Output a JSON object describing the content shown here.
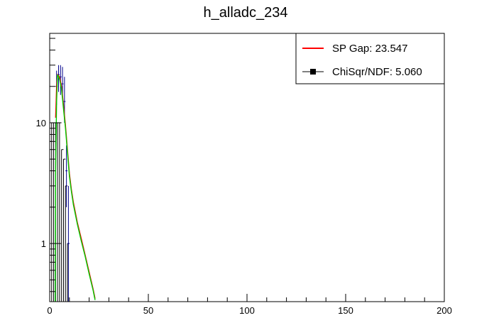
{
  "chart_data": {
    "type": "line",
    "title": "h_alladc_234",
    "xlabel": "",
    "ylabel": "",
    "xlim": [
      0,
      200
    ],
    "ylim": [
      0.33,
      55
    ],
    "log_y": true,
    "grid": false,
    "legend_position": "top-right",
    "x_ticks": [
      0,
      50,
      100,
      150,
      200
    ],
    "x_tick_labels": [
      "0",
      "50",
      "100",
      "150",
      "200"
    ],
    "y_ticks": [
      1,
      10
    ],
    "y_tick_labels": [
      "1",
      "10"
    ],
    "legend": [
      {
        "label": "SP Gap: 23.547",
        "color": "#ff0000",
        "marker": "line"
      },
      {
        "label": "ChiSqr/NDF: 5.060",
        "color": "#000000",
        "marker": "square"
      }
    ],
    "series": [
      {
        "kind": "histogram",
        "color": "#000000",
        "x": [
          0.5,
          1.5,
          2.5,
          3.5,
          4.5,
          5.5,
          6.5,
          7.5,
          8.5,
          9.5
        ],
        "values": [
          7,
          10,
          10,
          10,
          10,
          10,
          6,
          5,
          3,
          1
        ]
      },
      {
        "kind": "data_points",
        "color": "#00008b",
        "x": [
          3.5,
          4.5,
          5.5,
          6.5,
          7.5,
          8.5,
          9.5
        ],
        "values": [
          20,
          25,
          24,
          21,
          15,
          4,
          1
        ],
        "err_low": [
          14,
          18,
          17,
          16,
          10,
          2,
          0.33
        ],
        "err_high": [
          27,
          30,
          30,
          29,
          24,
          6.5,
          3
        ]
      },
      {
        "kind": "fit",
        "color": "#ff0000",
        "x": [
          3,
          3.5,
          4,
          5,
          6,
          7,
          8,
          9,
          10,
          11,
          12,
          14,
          16,
          18,
          20,
          22,
          23
        ],
        "values": [
          11,
          20,
          25,
          24,
          20,
          14,
          9.5,
          6,
          3.8,
          2.8,
          2.2,
          1.5,
          1.1,
          0.8,
          0.58,
          0.42,
          0.35
        ]
      },
      {
        "kind": "fit",
        "color": "#00cc00",
        "x": [
          2.8,
          3,
          3.5,
          4,
          5,
          6,
          7,
          8,
          9,
          10,
          11,
          12,
          14,
          16,
          18,
          20,
          22,
          23
        ],
        "values": [
          0.33,
          4,
          15,
          25,
          23,
          19,
          13,
          9,
          5.7,
          3.6,
          2.7,
          2.1,
          1.45,
          1.05,
          0.78,
          0.56,
          0.41,
          0.34
        ]
      }
    ]
  }
}
